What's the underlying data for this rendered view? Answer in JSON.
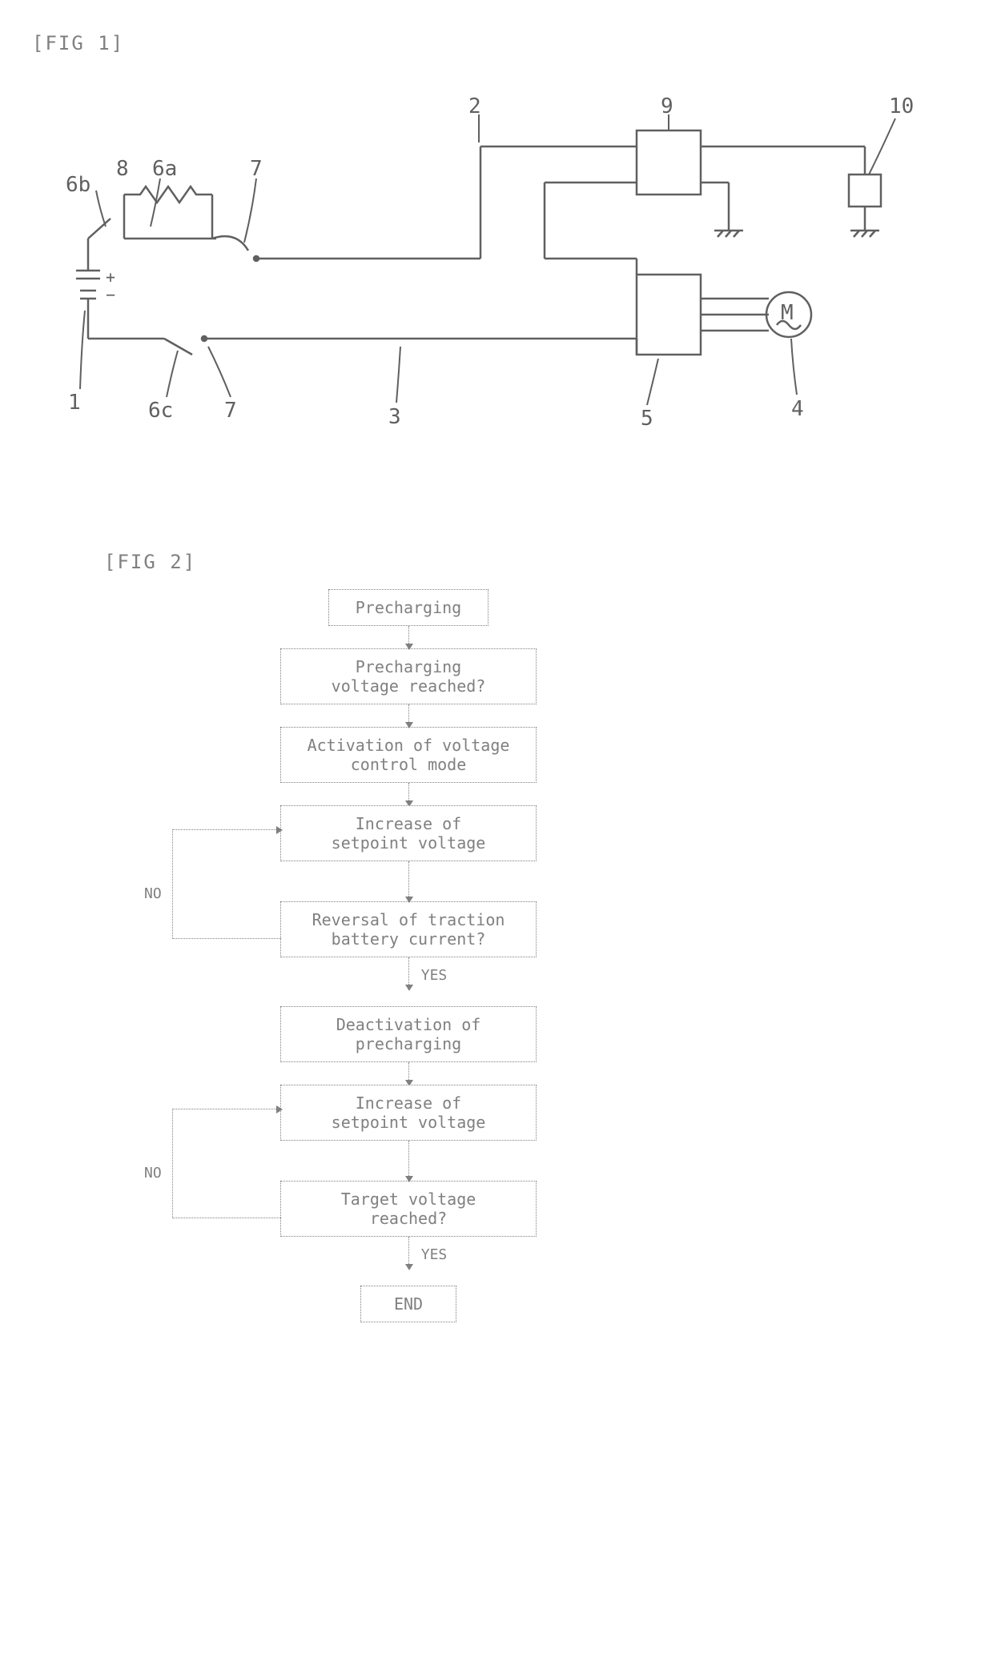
{
  "fig1": {
    "label": "[FIG 1]",
    "refs": {
      "r1": "1",
      "r2": "2",
      "r3": "3",
      "r4": "4",
      "r5": "5",
      "r6a": "6a",
      "r6b": "6b",
      "r6c": "6c",
      "r7a": "7",
      "r7b": "7",
      "r8": "8",
      "r9": "9",
      "r10": "10",
      "motor": "M"
    },
    "battery": {
      "plus": "+",
      "minus": "−"
    },
    "stroke": "#606060",
    "stroke_width": 2.5
  },
  "fig2": {
    "label": "[FIG 2]",
    "steps": {
      "s1": "Precharging",
      "s2": "Precharging\nvoltage reached?",
      "s3": "Activation of voltage\ncontrol mode",
      "s4": "Increase of\nsetpoint voltage",
      "s5": "Reversal of traction\nbattery current?",
      "s6": "Deactivation of\nprecharging",
      "s7": "Increase of\nsetpoint voltage",
      "s8": "Target voltage\nreached?",
      "s9": "END"
    },
    "labels": {
      "yes": "YES",
      "no": "NO"
    },
    "stroke": "#808080"
  }
}
